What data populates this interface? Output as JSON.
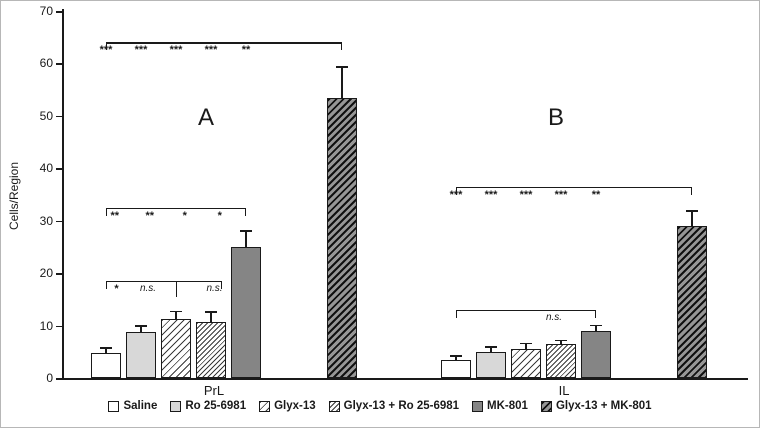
{
  "chart_data": {
    "type": "bar",
    "title": "",
    "ylabel": "Cells/Region",
    "xlabel": "",
    "ylim": [
      0,
      70
    ],
    "yticks": [
      0,
      10,
      20,
      30,
      40,
      50,
      60,
      70
    ],
    "grid": false,
    "legend_position": "bottom",
    "categories": [
      "PrL",
      "IL"
    ],
    "panel_labels": [
      "A",
      "B"
    ],
    "series": [
      {
        "name": "Saline",
        "pattern": "white",
        "values": [
          4.8,
          3.4
        ],
        "errors": [
          1.1,
          0.9
        ]
      },
      {
        "name": "Ro 25-6981",
        "pattern": "light-gray",
        "values": [
          8.8,
          5.0
        ],
        "errors": [
          1.3,
          1.1
        ]
      },
      {
        "name": "Glyx-13",
        "pattern": "diagonal-hatch-white",
        "values": [
          11.2,
          5.6
        ],
        "errors": [
          1.6,
          1.1
        ]
      },
      {
        "name": "Glyx-13 + Ro 25-6981",
        "pattern": "diagonal-hatch-white-fine",
        "values": [
          10.7,
          6.4
        ],
        "errors": [
          2.0,
          0.9
        ]
      },
      {
        "name": "MK-801",
        "pattern": "dark-gray",
        "values": [
          25.0,
          9.0
        ],
        "errors": [
          3.2,
          1.2
        ]
      },
      {
        "name": "Glyx-13 + MK-801",
        "pattern": "diagonal-hatch-dark",
        "values": [
          53.5,
          29.0
        ],
        "errors": [
          6.0,
          3.0
        ]
      }
    ],
    "significance": [
      {
        "panel": 0,
        "y": 64,
        "from": 0,
        "to": 5,
        "mid_ticks": [],
        "marks": [
          {
            "x": 0,
            "text": "***"
          },
          {
            "x": 1,
            "text": "***"
          },
          {
            "x": 2,
            "text": "***"
          },
          {
            "x": 3,
            "text": "***"
          },
          {
            "x": 4,
            "text": "**"
          }
        ]
      },
      {
        "panel": 0,
        "y": 32.5,
        "from": 0,
        "to": 4,
        "mid_ticks": [],
        "marks": [
          {
            "x": 0.25,
            "text": "**"
          },
          {
            "x": 1.25,
            "text": "**"
          },
          {
            "x": 2.25,
            "text": "*"
          },
          {
            "x": 3.25,
            "text": "*"
          }
        ]
      },
      {
        "panel": 0,
        "y": 18.5,
        "from": 0,
        "to": 3.3,
        "mid_ticks": [
          2
        ],
        "marks": [
          {
            "x": 0.3,
            "text": "*"
          },
          {
            "x": 1.2,
            "text": "n.s."
          },
          {
            "x": 3.1,
            "text": "n.s."
          }
        ]
      },
      {
        "panel": 1,
        "y": 36.5,
        "from": 0,
        "to": 5,
        "mid_ticks": [],
        "marks": [
          {
            "x": 0,
            "text": "***"
          },
          {
            "x": 1,
            "text": "***"
          },
          {
            "x": 2,
            "text": "***"
          },
          {
            "x": 3,
            "text": "***"
          },
          {
            "x": 4,
            "text": "**"
          }
        ]
      },
      {
        "panel": 1,
        "y": 13,
        "from": 0,
        "to": 4,
        "mid_ticks": [],
        "marks": [
          {
            "x": 2.8,
            "text": "n.s."
          }
        ]
      }
    ]
  }
}
